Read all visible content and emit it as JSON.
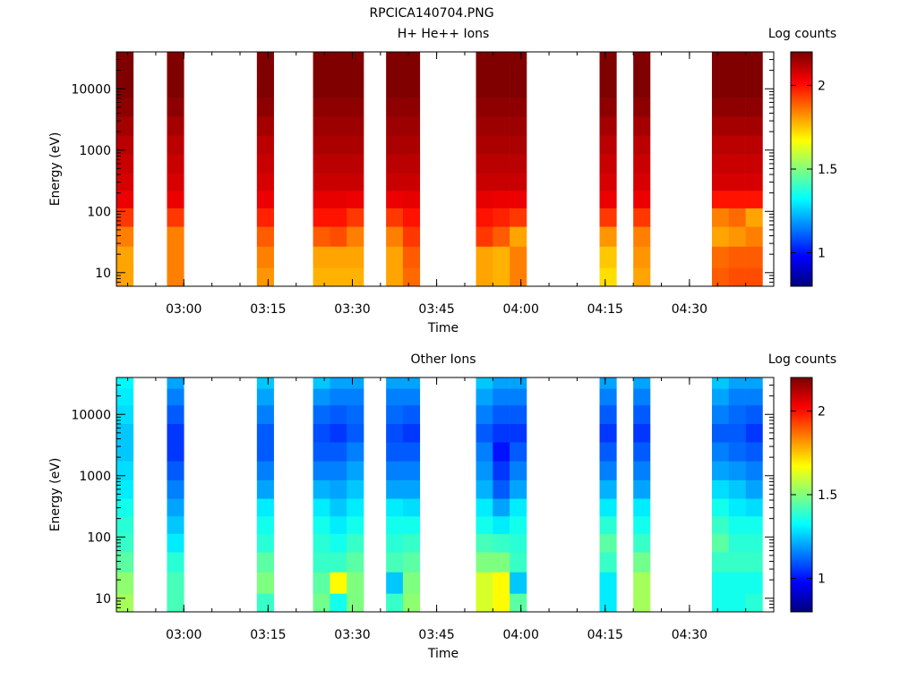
{
  "figure": {
    "title": "RPCICA140704.PNG"
  },
  "chart_data": [
    {
      "type": "heatmap",
      "title": "H+ He++ Ions",
      "xlabel": "Time",
      "ylabel": "Energy (eV)",
      "yscale": "log",
      "ylim": [
        6,
        40000
      ],
      "xlim": [
        "02:48",
        "04:45"
      ],
      "x_ticks": [
        "03:00",
        "03:15",
        "03:30",
        "03:45",
        "04:00",
        "04:15",
        "04:30"
      ],
      "y_ticks": [
        10,
        100,
        1000,
        10000
      ],
      "y_tick_labels": [
        "10",
        "100",
        "1000",
        "10000"
      ],
      "colorbar": {
        "label": "Log counts",
        "range": [
          0.8,
          2.2
        ],
        "ticks": [
          1,
          1.5,
          2
        ],
        "tick_labels": [
          "1",
          "1.5",
          "2"
        ],
        "colormap": "jet"
      },
      "bands_hhmm": [
        [
          "02:48",
          "02:51"
        ],
        [
          "02:57",
          "03:00"
        ],
        [
          "03:13",
          "03:16"
        ],
        [
          "03:23",
          "03:26"
        ],
        [
          "03:26",
          "03:29"
        ],
        [
          "03:29",
          "03:32"
        ],
        [
          "03:36",
          "03:39"
        ],
        [
          "03:39",
          "03:42"
        ],
        [
          "03:52",
          "03:55"
        ],
        [
          "03:55",
          "03:58"
        ],
        [
          "03:58",
          "04:01"
        ],
        [
          "04:14",
          "04:17"
        ],
        [
          "04:20",
          "04:23"
        ],
        [
          "04:34",
          "04:37"
        ],
        [
          "04:37",
          "04:40"
        ],
        [
          "04:40",
          "04:43"
        ]
      ],
      "energy_bins": [
        8,
        18,
        40,
        80,
        160,
        300,
        600,
        1200,
        2500,
        5000,
        10000,
        20000,
        35000
      ],
      "values": [
        [
          1.8,
          1.8,
          1.85,
          1.95,
          2.05,
          2.08,
          2.1,
          2.12,
          2.15,
          2.18,
          2.2,
          2.2,
          2.22
        ],
        [
          1.85,
          1.85,
          1.85,
          1.95,
          2.05,
          2.08,
          2.1,
          2.12,
          2.15,
          2.18,
          2.2,
          2.2,
          2.22
        ],
        [
          1.82,
          1.85,
          1.9,
          1.98,
          2.05,
          2.08,
          2.1,
          2.12,
          2.15,
          2.18,
          2.2,
          2.2,
          2.22
        ],
        [
          1.78,
          1.8,
          1.9,
          2.0,
          2.06,
          2.1,
          2.12,
          2.14,
          2.16,
          2.18,
          2.2,
          2.2,
          2.22
        ],
        [
          1.78,
          1.8,
          1.92,
          2.0,
          2.06,
          2.1,
          2.12,
          2.14,
          2.16,
          2.18,
          2.2,
          2.2,
          2.22
        ],
        [
          1.78,
          1.8,
          1.85,
          1.95,
          2.05,
          2.1,
          2.12,
          2.14,
          2.16,
          2.18,
          2.2,
          2.2,
          2.22
        ],
        [
          1.8,
          1.8,
          1.85,
          1.95,
          2.05,
          2.1,
          2.12,
          2.14,
          2.16,
          2.18,
          2.2,
          2.2,
          2.22
        ],
        [
          1.88,
          1.9,
          1.95,
          2.0,
          2.06,
          2.1,
          2.12,
          2.14,
          2.16,
          2.18,
          2.2,
          2.2,
          2.22
        ],
        [
          1.8,
          1.8,
          1.95,
          2.0,
          2.06,
          2.1,
          2.12,
          2.14,
          2.16,
          2.18,
          2.2,
          2.2,
          2.22
        ],
        [
          1.78,
          1.78,
          1.9,
          1.98,
          2.05,
          2.1,
          2.12,
          2.14,
          2.16,
          2.18,
          2.2,
          2.2,
          2.22
        ],
        [
          1.85,
          1.85,
          1.8,
          1.95,
          2.05,
          2.1,
          2.12,
          2.14,
          2.16,
          2.18,
          2.2,
          2.2,
          2.22
        ],
        [
          1.72,
          1.75,
          1.82,
          1.95,
          2.05,
          2.08,
          2.1,
          2.12,
          2.15,
          2.18,
          2.2,
          2.2,
          2.22
        ],
        [
          1.8,
          1.82,
          1.85,
          1.95,
          2.05,
          2.08,
          2.1,
          2.12,
          2.15,
          2.18,
          2.2,
          2.2,
          2.22
        ],
        [
          1.9,
          1.88,
          1.8,
          1.85,
          2.0,
          2.08,
          2.1,
          2.12,
          2.15,
          2.18,
          2.2,
          2.2,
          2.22
        ],
        [
          1.92,
          1.9,
          1.82,
          1.88,
          2.0,
          2.08,
          2.1,
          2.12,
          2.15,
          2.18,
          2.2,
          2.2,
          2.22
        ],
        [
          1.92,
          1.9,
          1.85,
          1.8,
          2.0,
          2.08,
          2.1,
          2.12,
          2.15,
          2.18,
          2.2,
          2.2,
          2.22
        ]
      ]
    },
    {
      "type": "heatmap",
      "title": "Other Ions",
      "xlabel": "Time",
      "ylabel": "Energy (eV)",
      "yscale": "log",
      "ylim": [
        6,
        40000
      ],
      "xlim": [
        "02:48",
        "04:45"
      ],
      "x_ticks": [
        "03:00",
        "03:15",
        "03:30",
        "03:45",
        "04:00",
        "04:15",
        "04:30"
      ],
      "y_ticks": [
        10,
        100,
        1000,
        10000
      ],
      "y_tick_labels": [
        "10",
        "100",
        "1000",
        "10000"
      ],
      "colorbar": {
        "label": "Log counts",
        "range": [
          0.8,
          2.2
        ],
        "ticks": [
          1,
          1.5,
          2
        ],
        "tick_labels": [
          "1",
          "1.5",
          "2"
        ],
        "colormap": "jet"
      },
      "bands_hhmm": [
        [
          "02:48",
          "02:51"
        ],
        [
          "02:57",
          "03:00"
        ],
        [
          "03:13",
          "03:16"
        ],
        [
          "03:23",
          "03:26"
        ],
        [
          "03:26",
          "03:29"
        ],
        [
          "03:29",
          "03:32"
        ],
        [
          "03:36",
          "03:39"
        ],
        [
          "03:39",
          "03:42"
        ],
        [
          "03:52",
          "03:55"
        ],
        [
          "03:55",
          "03:58"
        ],
        [
          "03:58",
          "04:01"
        ],
        [
          "04:14",
          "04:17"
        ],
        [
          "04:20",
          "04:23"
        ],
        [
          "04:34",
          "04:37"
        ],
        [
          "04:37",
          "04:40"
        ],
        [
          "04:40",
          "04:43"
        ]
      ],
      "energy_bins": [
        8,
        18,
        40,
        80,
        160,
        300,
        600,
        1200,
        2500,
        5000,
        10000,
        20000,
        35000
      ],
      "values": [
        [
          1.55,
          1.52,
          1.45,
          1.4,
          1.38,
          1.35,
          1.3,
          1.28,
          1.25,
          1.25,
          1.28,
          1.3,
          1.32
        ],
        [
          1.42,
          1.42,
          1.38,
          1.3,
          1.25,
          1.2,
          1.15,
          1.1,
          1.05,
          1.05,
          1.1,
          1.15,
          1.2
        ],
        [
          1.4,
          1.5,
          1.45,
          1.38,
          1.35,
          1.3,
          1.2,
          1.15,
          1.1,
          1.1,
          1.15,
          1.2,
          1.25
        ],
        [
          1.48,
          1.45,
          1.4,
          1.38,
          1.35,
          1.3,
          1.22,
          1.15,
          1.1,
          1.08,
          1.12,
          1.18,
          1.25
        ],
        [
          1.35,
          1.68,
          1.4,
          1.35,
          1.3,
          1.25,
          1.2,
          1.15,
          1.1,
          1.05,
          1.1,
          1.15,
          1.2
        ],
        [
          1.5,
          1.5,
          1.45,
          1.4,
          1.35,
          1.3,
          1.25,
          1.2,
          1.15,
          1.1,
          1.12,
          1.15,
          1.2
        ],
        [
          1.4,
          1.25,
          1.42,
          1.38,
          1.35,
          1.3,
          1.2,
          1.15,
          1.1,
          1.08,
          1.12,
          1.15,
          1.2
        ],
        [
          1.52,
          1.5,
          1.45,
          1.4,
          1.35,
          1.28,
          1.2,
          1.15,
          1.1,
          1.05,
          1.1,
          1.15,
          1.2
        ],
        [
          1.62,
          1.62,
          1.5,
          1.42,
          1.35,
          1.3,
          1.22,
          1.18,
          1.15,
          1.1,
          1.15,
          1.2,
          1.25
        ],
        [
          1.68,
          1.68,
          1.5,
          1.4,
          1.3,
          1.2,
          1.1,
          1.05,
          1.0,
          1.05,
          1.1,
          1.15,
          1.2
        ],
        [
          1.45,
          1.25,
          1.4,
          1.38,
          1.35,
          1.3,
          1.2,
          1.15,
          1.1,
          1.05,
          1.1,
          1.15,
          1.2
        ],
        [
          1.3,
          1.3,
          1.4,
          1.45,
          1.38,
          1.3,
          1.22,
          1.15,
          1.1,
          1.05,
          1.1,
          1.15,
          1.2
        ],
        [
          1.55,
          1.55,
          1.48,
          1.4,
          1.35,
          1.3,
          1.2,
          1.15,
          1.1,
          1.05,
          1.1,
          1.15,
          1.2
        ],
        [
          1.35,
          1.35,
          1.4,
          1.45,
          1.4,
          1.35,
          1.28,
          1.2,
          1.15,
          1.1,
          1.15,
          1.2,
          1.25
        ],
        [
          1.35,
          1.35,
          1.4,
          1.38,
          1.35,
          1.3,
          1.25,
          1.18,
          1.12,
          1.1,
          1.12,
          1.15,
          1.2
        ],
        [
          1.38,
          1.35,
          1.4,
          1.38,
          1.35,
          1.28,
          1.2,
          1.15,
          1.1,
          1.05,
          1.1,
          1.15,
          1.2
        ]
      ]
    }
  ]
}
